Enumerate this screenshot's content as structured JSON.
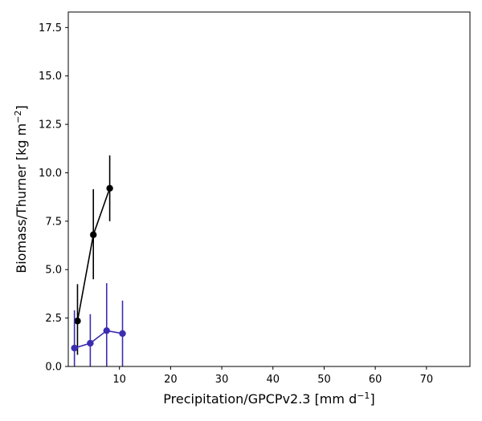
{
  "chart_data": {
    "type": "line",
    "xlabel": "Precipitation/GPCPv2.3 [mm d",
    "xlabel_sup": "−1",
    "xlabel_suffix": "]",
    "ylabel": "Biomass/Thurner [kg m",
    "ylabel_sup": "−2",
    "ylabel_suffix": "]",
    "xlim": [
      0,
      78.5
    ],
    "ylim": [
      0,
      18.3
    ],
    "xticks": [
      10,
      20,
      30,
      40,
      50,
      60,
      70
    ],
    "yticks": [
      0.0,
      2.5,
      5.0,
      7.5,
      10.0,
      12.5,
      15.0,
      17.5
    ],
    "ytick_labels": [
      "0.0",
      "2.5",
      "5.0",
      "7.5",
      "10.0",
      "12.5",
      "15.0",
      "17.5"
    ],
    "grid": false,
    "legend": "none",
    "series": [
      {
        "color": "#000000",
        "x": [
          1.8,
          4.9,
          8.1
        ],
        "y": [
          2.35,
          6.8,
          9.2
        ],
        "err_low": [
          0.6,
          4.5,
          7.5
        ],
        "err_high": [
          4.25,
          9.15,
          10.9
        ]
      },
      {
        "color": "#3b2db0",
        "x": [
          1.2,
          4.3,
          7.5,
          10.6
        ],
        "y": [
          0.95,
          1.2,
          1.85,
          1.7
        ],
        "err_low": [
          0.0,
          0.0,
          0.0,
          0.0
        ],
        "err_high": [
          2.9,
          2.7,
          4.3,
          3.4
        ]
      }
    ]
  }
}
